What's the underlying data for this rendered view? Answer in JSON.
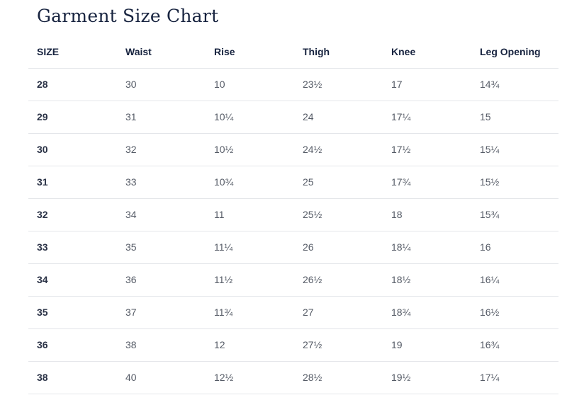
{
  "title": "Garment Size Chart",
  "table": {
    "headers": [
      "SIZE",
      "Waist",
      "Rise",
      "Thigh",
      "Knee",
      "Leg Opening"
    ],
    "rows": [
      [
        "28",
        "30",
        "10",
        "23½",
        "17",
        "14¾"
      ],
      [
        "29",
        "31",
        "10¼",
        "24",
        "17¼",
        "15"
      ],
      [
        "30",
        "32",
        "10½",
        "24½",
        "17½",
        "15¼"
      ],
      [
        "31",
        "33",
        "10¾",
        "25",
        "17¾",
        "15½"
      ],
      [
        "32",
        "34",
        "11",
        "25½",
        "18",
        "15¾"
      ],
      [
        "33",
        "35",
        "11¼",
        "26",
        "18¼",
        "16"
      ],
      [
        "34",
        "36",
        "11½",
        "26½",
        "18½",
        "16¼"
      ],
      [
        "35",
        "37",
        "11¾",
        "27",
        "18¾",
        "16½"
      ],
      [
        "36",
        "38",
        "12",
        "27½",
        "19",
        "16¾"
      ],
      [
        "38",
        "40",
        "12½",
        "28½",
        "19½",
        "17¼"
      ]
    ]
  }
}
